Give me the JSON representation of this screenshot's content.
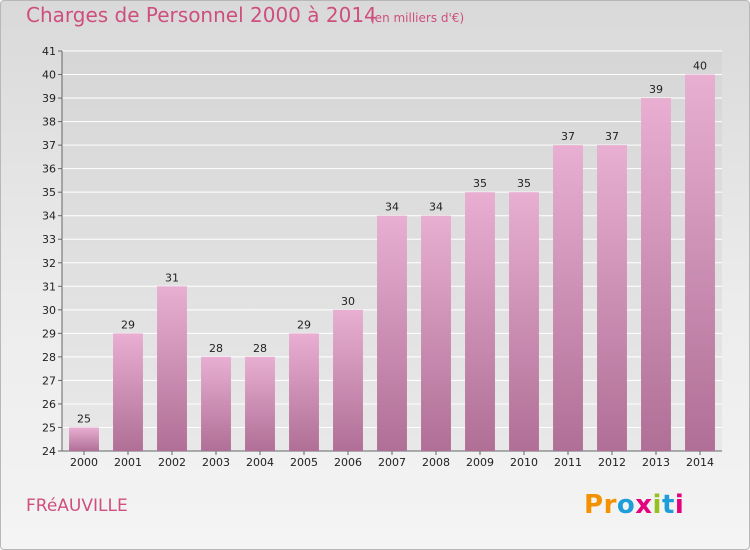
{
  "header": {
    "title": "Charges de Personnel 2000 à 2014",
    "subtitle": "(en milliers d'€)"
  },
  "footer": {
    "commune": "FRéAUVILLE",
    "logo_letters": [
      "P",
      "r",
      "o",
      "x",
      "i",
      "t",
      "i"
    ]
  },
  "colors": {
    "title": "#ce4f7e",
    "bar_light": "#e8afd2",
    "bar_dark": "#b06f96",
    "logo": [
      "#f39200",
      "#f39200",
      "#1d9ed8",
      "#e5007e",
      "#95c11f",
      "#1d9ed8",
      "#e5007e"
    ]
  },
  "chart_data": {
    "type": "bar",
    "title": "Charges de Personnel 2000 à 2014",
    "subtitle": "(en milliers d'€)",
    "categories": [
      "2000",
      "2001",
      "2002",
      "2003",
      "2004",
      "2005",
      "2006",
      "2007",
      "2008",
      "2009",
      "2010",
      "2011",
      "2012",
      "2013",
      "2014"
    ],
    "values": [
      25,
      29,
      31,
      28,
      28,
      29,
      30,
      34,
      34,
      35,
      35,
      37,
      37,
      39,
      40
    ],
    "ylim": [
      24,
      41
    ],
    "yticks": [
      24,
      25,
      26,
      27,
      28,
      29,
      30,
      31,
      32,
      33,
      34,
      35,
      36,
      37,
      38,
      39,
      40,
      41
    ],
    "xlabel": "",
    "ylabel": "",
    "grid": true
  }
}
